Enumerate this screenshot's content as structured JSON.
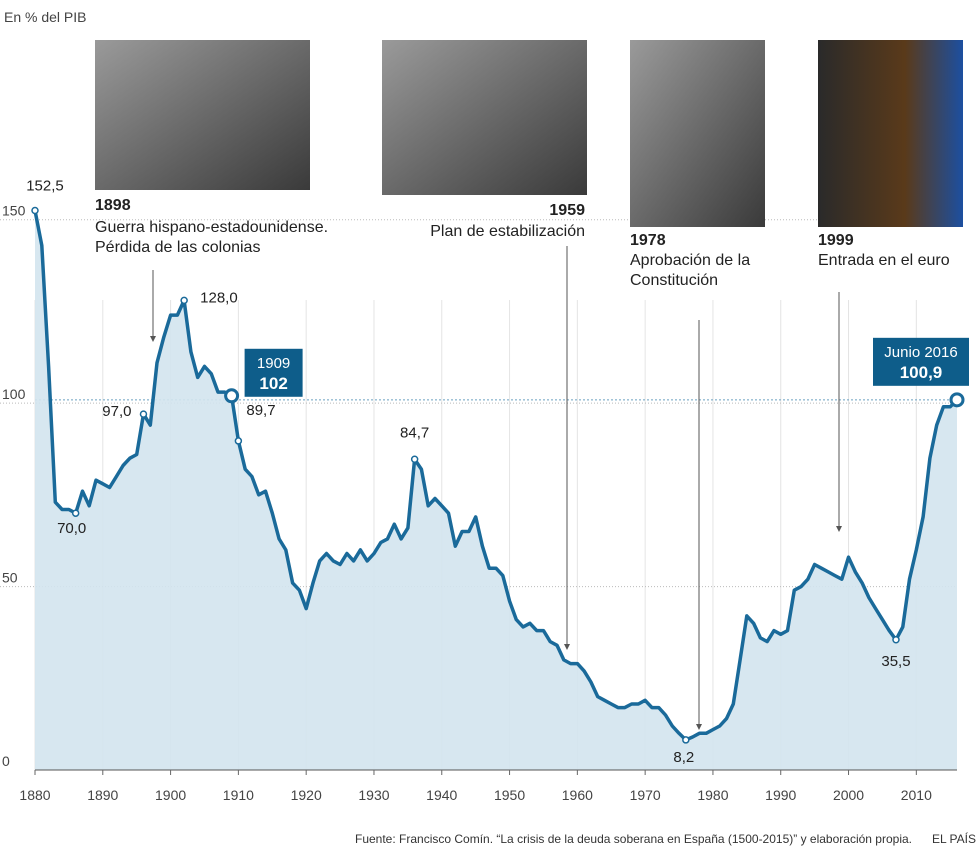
{
  "chart_data": {
    "type": "area",
    "subtitle": "En % del PIB",
    "x": [
      1880,
      1881,
      1882,
      1883,
      1884,
      1885,
      1886,
      1887,
      1888,
      1889,
      1890,
      1891,
      1892,
      1893,
      1894,
      1895,
      1896,
      1897,
      1898,
      1899,
      1900,
      1901,
      1902,
      1903,
      1904,
      1905,
      1906,
      1907,
      1908,
      1909,
      1910,
      1911,
      1912,
      1913,
      1914,
      1915,
      1916,
      1917,
      1918,
      1919,
      1920,
      1921,
      1922,
      1923,
      1924,
      1925,
      1926,
      1927,
      1928,
      1929,
      1930,
      1931,
      1932,
      1933,
      1934,
      1935,
      1936,
      1937,
      1938,
      1939,
      1940,
      1941,
      1942,
      1943,
      1944,
      1945,
      1946,
      1947,
      1948,
      1949,
      1950,
      1951,
      1952,
      1953,
      1954,
      1955,
      1956,
      1957,
      1958,
      1959,
      1960,
      1961,
      1962,
      1963,
      1964,
      1965,
      1966,
      1967,
      1968,
      1969,
      1970,
      1971,
      1972,
      1973,
      1974,
      1975,
      1976,
      1977,
      1978,
      1979,
      1980,
      1981,
      1982,
      1983,
      1984,
      1985,
      1986,
      1987,
      1988,
      1989,
      1990,
      1991,
      1992,
      1993,
      1994,
      1995,
      1996,
      1997,
      1998,
      1999,
      2000,
      2001,
      2002,
      2003,
      2004,
      2005,
      2006,
      2007,
      2008,
      2009,
      2010,
      2011,
      2012,
      2013,
      2014,
      2015,
      2016
    ],
    "values": [
      152.5,
      143,
      110,
      73,
      71,
      71,
      70.0,
      76,
      72,
      79,
      78,
      77,
      80,
      83,
      85,
      86,
      97.0,
      94,
      111,
      118,
      124,
      124,
      128.0,
      114,
      107,
      110,
      108,
      103,
      103,
      102,
      89.7,
      82,
      80,
      75,
      76,
      70,
      63,
      60,
      51,
      49,
      44,
      51,
      57,
      59,
      57,
      56,
      59,
      57,
      60,
      57,
      59,
      62,
      63,
      67,
      63,
      66,
      84.7,
      82,
      72,
      74,
      72,
      70,
      61,
      65,
      65,
      69,
      61,
      55,
      55,
      53,
      46,
      41,
      39,
      40,
      38,
      38,
      35,
      34,
      30,
      29,
      29,
      27,
      24,
      20,
      19,
      18,
      17,
      17,
      18,
      18,
      19,
      17,
      17,
      15,
      12,
      10,
      8.2,
      9,
      10,
      10,
      11,
      12,
      14,
      18,
      30,
      42,
      40,
      36,
      35,
      38,
      37,
      38,
      49,
      50,
      52,
      56,
      55,
      54,
      53,
      52,
      58,
      54,
      51,
      47,
      44,
      41,
      38,
      35.5,
      39,
      52,
      60,
      69,
      85,
      94,
      99,
      99,
      100.9
    ],
    "value_labels": [
      "152,5",
      null,
      null,
      null,
      null,
      null,
      "70,0",
      null,
      null,
      null,
      null,
      null,
      null,
      null,
      null,
      null,
      "97,0",
      null,
      null,
      null,
      null,
      null,
      "128,0",
      null,
      null,
      null,
      null,
      null,
      null,
      null,
      "89,7",
      null,
      null,
      null,
      null,
      null,
      null,
      null,
      null,
      null,
      null,
      null,
      null,
      null,
      null,
      null,
      null,
      null,
      null,
      null,
      null,
      null,
      null,
      null,
      null,
      null,
      "84,7",
      null,
      null,
      null,
      null,
      null,
      null,
      null,
      null,
      null,
      null,
      null,
      null,
      null,
      null,
      null,
      null,
      null,
      null,
      null,
      null,
      null,
      null,
      null,
      null,
      null,
      null,
      null,
      null,
      null,
      null,
      null,
      null,
      null,
      null,
      null,
      null,
      null,
      null,
      null,
      "8,2",
      null,
      null,
      null,
      null,
      null,
      null,
      null,
      null,
      null,
      null,
      null,
      null,
      null,
      null,
      null,
      null,
      null,
      null,
      null,
      null,
      null,
      null,
      null,
      null,
      null,
      null,
      null,
      null,
      null,
      null,
      "35,5",
      null,
      null,
      null,
      null,
      null,
      null,
      null,
      null,
      null
    ],
    "color": "#1a6a9a",
    "fill": "#d3e4ee",
    "xlim": [
      1880,
      2016
    ],
    "xticks": [
      1880,
      1890,
      1900,
      1910,
      1920,
      1930,
      1940,
      1950,
      1960,
      1970,
      1980,
      1990,
      2000,
      2010
    ],
    "ylim": [
      0,
      160
    ],
    "yticks": [
      0,
      50,
      100,
      150
    ],
    "grid": true,
    "callouts": [
      {
        "label": "1909",
        "value": 102
      },
      {
        "label": "Junio 2016",
        "value": 100.9,
        "value_label": "100,9"
      }
    ],
    "events": [
      {
        "year": "1898",
        "lines": [
          "Guerra hispano-estadounidense.",
          "Pérdida de las colonias"
        ]
      },
      {
        "year": "1959",
        "lines": [
          "Plan de estabilización"
        ]
      },
      {
        "year": "1978",
        "lines": [
          "Aprobación de la",
          "Constitución"
        ]
      },
      {
        "year": "1999",
        "lines": [
          "Entrada en el euro"
        ]
      }
    ],
    "source": "Fuente: Francisco Comín. “La crisis de la deuda soberana en España (1500-2015)” y elaboración propia.",
    "credit": "EL PAÍS"
  }
}
